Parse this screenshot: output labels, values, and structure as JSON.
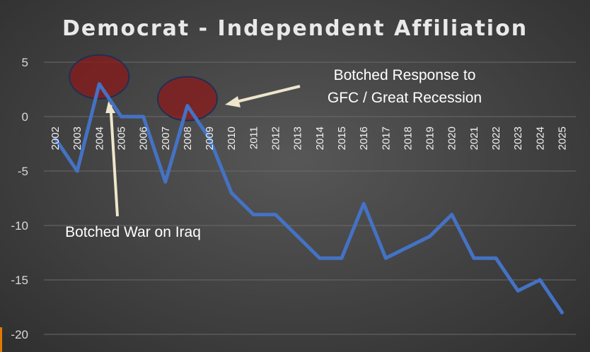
{
  "chart_data": {
    "type": "line",
    "title": "Democrat - Independent Affiliation",
    "xlabel": "",
    "ylabel": "",
    "ylim": [
      -20,
      5
    ],
    "yticks": [
      5,
      0,
      -5,
      -10,
      -15,
      -20
    ],
    "grid": true,
    "legend": "none",
    "x": [
      "2002",
      "2003",
      "2004",
      "2005",
      "2006",
      "2007",
      "2008",
      "2009",
      "2010",
      "2011",
      "2012",
      "2013",
      "2014",
      "2015",
      "2016",
      "2017",
      "2018",
      "2019",
      "2020",
      "2021",
      "2022",
      "2023",
      "2024",
      "2025"
    ],
    "series": [
      {
        "values": [
          -2,
          -5,
          3,
          0,
          0,
          -6,
          1,
          -2,
          -7,
          -9,
          -9,
          -11,
          -13,
          -13,
          -8,
          -13,
          -12,
          -11,
          -9,
          -13,
          -13,
          -16,
          -15,
          -18
        ],
        "color": "#4472c4"
      }
    ],
    "highlights": [
      {
        "year": "2004",
        "color": "#8b1a1a"
      },
      {
        "year": "2008",
        "color": "#8b1a1a"
      }
    ],
    "annotations": [
      {
        "id": "iraq",
        "lines": [
          "Botched War on Iraq"
        ],
        "target_year": "2004"
      },
      {
        "id": "gfc",
        "lines": [
          "Botched Response to",
          "GFC / Great Recession"
        ],
        "target_year": "2008"
      }
    ]
  }
}
